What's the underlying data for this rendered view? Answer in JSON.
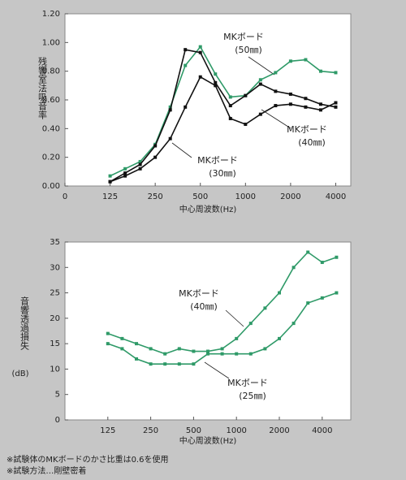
{
  "chart_data": [
    {
      "type": "line",
      "y_label": "残響室法吸音率",
      "x_label": "中心周波数(Hz)",
      "categories": [
        "0",
        null,
        null,
        "125",
        null,
        null,
        "250",
        null,
        null,
        "500",
        null,
        null,
        "1000",
        null,
        null,
        "2000",
        null,
        null,
        "4000"
      ],
      "ylim": [
        0,
        1.2
      ],
      "yticks": [
        {
          "value": 0,
          "label": "0.00"
        },
        {
          "value": 0.2,
          "label": "0.20"
        },
        {
          "value": 0.4,
          "label": "0.40"
        },
        {
          "value": 0.6,
          "label": "0.60"
        },
        {
          "value": 0.8,
          "label": "0.80"
        },
        {
          "value": 1.0,
          "label": "1.00"
        },
        {
          "value": 1.2,
          "label": "1.20"
        }
      ],
      "series": [
        {
          "color": "#2f9a68",
          "values": [
            null,
            null,
            null,
            0.07,
            0.12,
            0.17,
            0.29,
            0.55,
            0.84,
            0.97,
            0.78,
            0.62,
            0.63,
            0.74,
            0.79,
            0.87,
            0.88,
            0.8,
            0.79
          ]
        },
        {
          "color": "#111111",
          "values": [
            null,
            null,
            null,
            0.03,
            0.09,
            0.15,
            0.28,
            0.53,
            0.95,
            0.93,
            0.72,
            0.56,
            0.63,
            0.71,
            0.66,
            0.64,
            0.61,
            0.57,
            0.55
          ]
        },
        {
          "color": "#111111",
          "values": [
            null,
            null,
            null,
            0.03,
            0.07,
            0.12,
            0.2,
            0.33,
            0.55,
            0.76,
            0.7,
            0.47,
            0.43,
            0.5,
            0.56,
            0.57,
            0.55,
            0.53,
            0.58
          ]
        }
      ],
      "annotations": [
        {
          "lines": [
            "MKボード",
            "(50㎜)"
          ]
        },
        {
          "lines": [
            "MKボード",
            "(40㎜)"
          ]
        },
        {
          "lines": [
            "MKボード",
            "(30㎜)"
          ]
        }
      ]
    },
    {
      "type": "line",
      "y_label": "音響透過損失",
      "y_unit": "(dB)",
      "x_label": "中心周波数(Hz)",
      "categories": [
        null,
        null,
        null,
        "125",
        null,
        null,
        "250",
        null,
        null,
        "500",
        null,
        null,
        "1000",
        null,
        null,
        "2000",
        null,
        null,
        "4000",
        null
      ],
      "ylim": [
        0,
        35
      ],
      "yticks": [
        0,
        5,
        10,
        15,
        20,
        25,
        30,
        35
      ],
      "series": [
        {
          "color": "#2f9a68",
          "values": [
            null,
            null,
            null,
            17,
            16,
            15,
            14,
            13,
            14,
            13.5,
            13.5,
            14,
            16,
            19,
            22,
            25,
            30,
            33,
            31,
            32
          ]
        },
        {
          "color": "#2f9a68",
          "values": [
            null,
            null,
            null,
            15,
            14,
            12,
            11,
            11,
            11,
            11,
            13,
            13,
            13,
            13,
            14,
            16,
            19,
            23,
            24,
            25
          ]
        }
      ],
      "annotations": [
        {
          "lines": [
            "MKボード",
            "(40㎜)"
          ]
        },
        {
          "lines": [
            "MKボード",
            "(25㎜)"
          ]
        }
      ]
    }
  ],
  "notes": [
    "※試験体のMKボードのかさ比重は0.6を使用",
    "※試験方法…剛壁密着"
  ]
}
